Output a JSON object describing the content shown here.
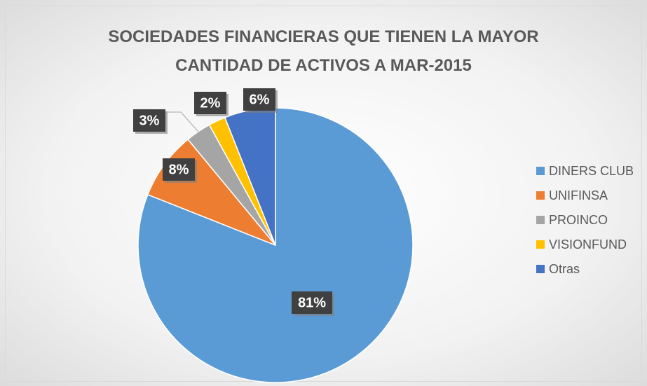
{
  "chart_data": {
    "type": "pie",
    "title": "SOCIEDADES FINANCIERAS QUE TIENEN LA MAYOR\nCANTIDAD DE ACTIVOS A MAR-2015",
    "categories": [
      "DINERS CLUB",
      "UNIFINSA",
      "PROINCO",
      "VISIONFUND",
      "Otras"
    ],
    "values": [
      81,
      8,
      3,
      2,
      6
    ],
    "value_labels": [
      "81%",
      "8%",
      "3%",
      "2%",
      "6%"
    ],
    "colors": [
      "#5b9bd5",
      "#ed7d31",
      "#a5a5a5",
      "#ffc000",
      "#4472c4"
    ],
    "legend": "right"
  }
}
